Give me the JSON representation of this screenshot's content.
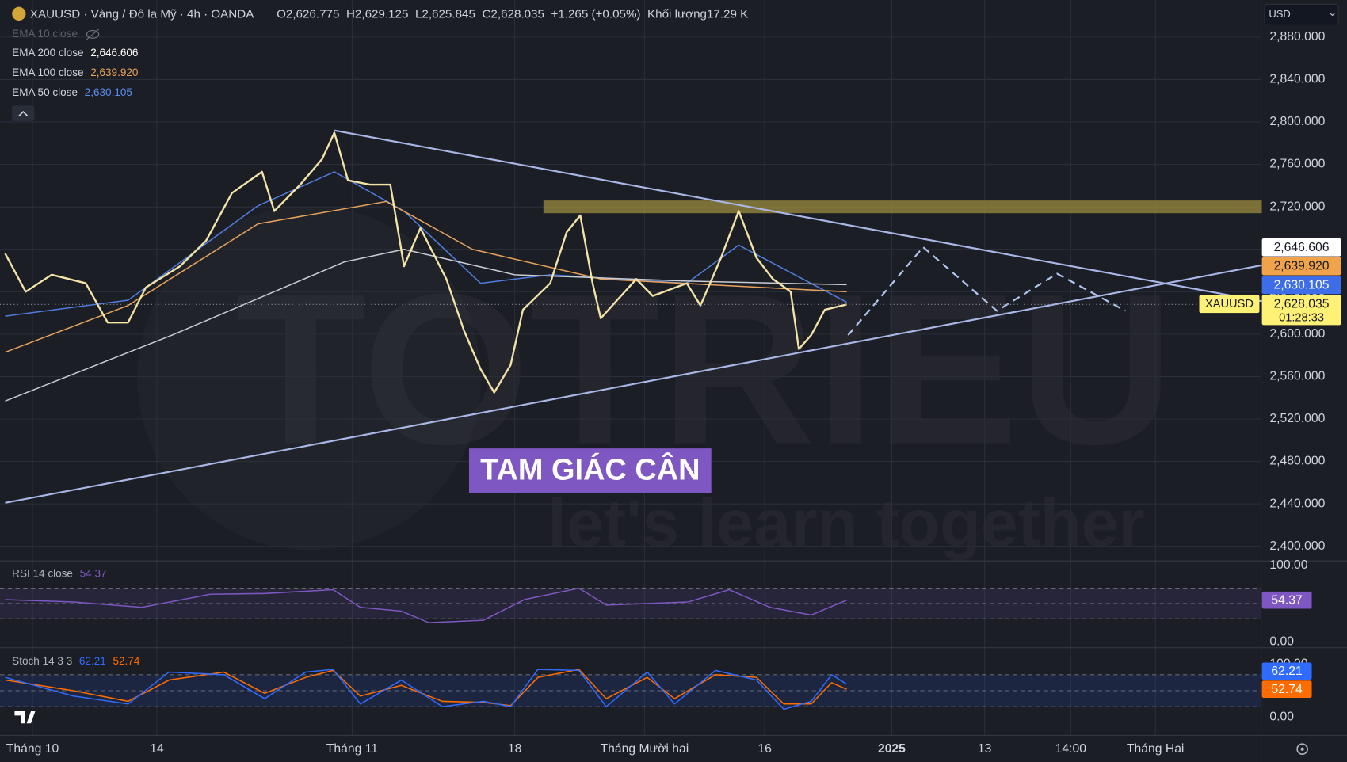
{
  "header": {
    "symbol": "XAUUSD · Vàng / Đô la Mỹ · 4h · OANDA",
    "ohlc": [
      {
        "key": "O",
        "value": "2,626.775"
      },
      {
        "key": "H",
        "value": "2,629.125"
      },
      {
        "key": "L",
        "value": "2,625.845"
      },
      {
        "key": "C",
        "value": "2,628.035"
      }
    ],
    "change": "+1.265 (+0.05%)",
    "volume_label": "Khối lượng",
    "volume": "17.29 K"
  },
  "hidden_indicator": "EMA 10 close",
  "currency": "USD",
  "pattern_label": "TAM GIÁC CÂN",
  "watermark": {
    "brand": "TOTRIEU",
    "slogan": "let's learn together"
  },
  "symbol_tag": "XAUUSD",
  "countdown": "01:28:33",
  "chart_data": [
    {
      "type": "line",
      "xlim": [
        -2,
        90
      ],
      "ylim": [
        2387,
        2915
      ],
      "yticks": [
        {
          "value": 2400,
          "label": "2,400.000"
        },
        {
          "value": 2440,
          "label": "2,440.000"
        },
        {
          "value": 2480,
          "label": "2,480.000"
        },
        {
          "value": 2520,
          "label": "2,520.000"
        },
        {
          "value": 2560,
          "label": "2,560.000"
        },
        {
          "value": 2600,
          "label": "2,600.000"
        },
        {
          "value": 2640,
          "label": "2,640.000"
        },
        {
          "value": 2680,
          "label": "2,680.000"
        },
        {
          "value": 2720,
          "label": "2,720.000"
        },
        {
          "value": 2760,
          "label": "2,760.000"
        },
        {
          "value": 2800,
          "label": "2,800.000"
        },
        {
          "value": 2840,
          "label": "2,840.000"
        },
        {
          "value": 2880,
          "label": "2,880.000"
        }
      ],
      "xticks": [
        {
          "value": 0,
          "label": "Tháng 10"
        },
        {
          "value": 9.1,
          "label": "14"
        },
        {
          "value": 23.4,
          "label": "Tháng 11"
        },
        {
          "value": 35.3,
          "label": "18"
        },
        {
          "value": 44.8,
          "label": "Tháng Mười hai"
        },
        {
          "value": 53.6,
          "label": "16"
        },
        {
          "value": 62.9,
          "label": "2025"
        },
        {
          "value": 69.7,
          "label": "13"
        },
        {
          "value": 76.0,
          "label": "14:00"
        },
        {
          "value": 82.2,
          "label": "Tháng Hai"
        }
      ],
      "grid": true,
      "series": [
        {
          "name": "XAUUSD",
          "color": "#f3e3a6",
          "x": [
            -2,
            -0.5,
            1.4,
            3.9,
            5.5,
            7.0,
            8.3,
            10.8,
            12.7,
            14.6,
            16.8,
            17.7,
            19.6,
            21.2,
            22.1,
            23.1,
            24.7,
            26.2,
            27.2,
            28.4,
            30.3,
            31.6,
            32.8,
            33.8,
            35.0,
            35.9,
            37.9,
            39.1,
            40.1,
            41.0,
            41.6,
            44.2,
            45.4,
            47.9,
            48.9,
            50.4,
            51.7,
            53.0,
            54.2,
            55.5,
            56.1,
            57.0,
            58.0,
            59.6
          ],
          "values": [
            2676,
            2640,
            2656,
            2648,
            2611,
            2611,
            2644,
            2664,
            2688,
            2733,
            2753,
            2716,
            2741,
            2765,
            2790,
            2745,
            2741,
            2741,
            2664,
            2700,
            2652,
            2603,
            2567,
            2545,
            2571,
            2623,
            2648,
            2696,
            2712,
            2648,
            2615,
            2652,
            2636,
            2648,
            2627,
            2672,
            2716,
            2672,
            2652,
            2640,
            2586,
            2599,
            2623,
            2628.035
          ]
        },
        {
          "name": "EMA 200 close",
          "color": "#c9cbd2",
          "x": [
            -2,
            10.2,
            22.8,
            27.2,
            35.3,
            47.9,
            59.6
          ],
          "values": [
            2537,
            2599,
            2668,
            2680,
            2656,
            2650,
            2646.606
          ]
        },
        {
          "name": "EMA 100 close",
          "color": "#e8a35b",
          "x": [
            -2,
            7.0,
            16.5,
            25.9,
            32.2,
            41.6,
            59.6
          ],
          "values": [
            2583,
            2627,
            2704,
            2725,
            2680,
            2652,
            2639.92
          ]
        },
        {
          "name": "EMA 50 close",
          "color": "#4f7de0",
          "x": [
            -2,
            7.0,
            16.5,
            22.1,
            27.2,
            32.8,
            37.9,
            47.9,
            51.7,
            59.6
          ],
          "values": [
            2617,
            2632,
            2721,
            2753,
            2716,
            2648,
            2656,
            2648,
            2684,
            2630.105
          ]
        }
      ],
      "trendlines": [
        {
          "color": "#a9b6e6",
          "x": [
            22.1,
            90
          ],
          "y": [
            2792,
            2631
          ]
        },
        {
          "color": "#a9b6e6",
          "x": [
            -2,
            90
          ],
          "y": [
            2441,
            2665
          ]
        }
      ],
      "zone": {
        "color": "#8c7f3c",
        "x": [
          37.4,
          90
        ],
        "y": [
          2714,
          2726
        ]
      },
      "projection": {
        "color": "#b3c6f0",
        "x": [
          59.7,
          65.2,
          70.6,
          75.0,
          80.0
        ],
        "y": [
          2599,
          2682,
          2622,
          2657,
          2622
        ]
      },
      "price_tags": [
        {
          "value": 2646.606,
          "label": "2,646.606",
          "color": "#ffffff",
          "text_color": "#131722"
        },
        {
          "value": 2639.92,
          "label": "2,639.920",
          "color": "#f0a34a",
          "text_color": "#131722"
        },
        {
          "value": 2630.105,
          "label": "2,630.105",
          "color": "#3d6ee8",
          "text_color": "#ffffff"
        },
        {
          "value": 2628.035,
          "label": "2,628.035",
          "color": "#fff176",
          "text_color": "#131722"
        }
      ]
    },
    {
      "type": "line",
      "title": "RSI 14 close",
      "xlim": [
        -2,
        90
      ],
      "ylim": [
        0,
        100
      ],
      "yticks": [
        {
          "value": 100,
          "label": "100.00"
        },
        {
          "value": 0,
          "label": "0.00"
        }
      ],
      "bands": [
        70,
        50,
        30
      ],
      "band_color": "#7e57c2",
      "series": [
        {
          "color": "#7e57c2",
          "last_value_label": "54.37",
          "x": [
            -2,
            3,
            8,
            13,
            17,
            22,
            24,
            27,
            29,
            33,
            36,
            40,
            42,
            48,
            51,
            54,
            57,
            59.6
          ],
          "values": [
            55,
            52,
            45,
            62,
            63,
            68,
            45,
            40,
            25,
            28,
            55,
            70,
            48,
            52,
            68,
            45,
            35,
            54.37
          ]
        }
      ]
    },
    {
      "type": "line",
      "title": "Stoch 14 3 3",
      "xlim": [
        -2,
        90
      ],
      "ylim": [
        0,
        100
      ],
      "yticks": [
        {
          "value": 100,
          "label": "100.00"
        },
        {
          "value": 0,
          "label": "0.00"
        }
      ],
      "bands": [
        80,
        50,
        20
      ],
      "band_color": "#2962ff",
      "series": [
        {
          "color": "#2f6bff",
          "last_value_label": "62.21",
          "x": [
            -2,
            3,
            7,
            10,
            14,
            17,
            20,
            22,
            24,
            27,
            30,
            33,
            35,
            37,
            40,
            42,
            45,
            47,
            50,
            53,
            55,
            57,
            58.5,
            59.6
          ],
          "values": [
            75,
            40,
            25,
            85,
            80,
            35,
            85,
            90,
            25,
            70,
            20,
            30,
            20,
            90,
            88,
            20,
            85,
            25,
            88,
            70,
            15,
            30,
            80,
            62.21
          ]
        },
        {
          "color": "#ff6d00",
          "last_value_label": "52.74",
          "x": [
            -2,
            3,
            7,
            10,
            14,
            17,
            20,
            22,
            24,
            27,
            30,
            33,
            35,
            37,
            40,
            42,
            45,
            47,
            50,
            53,
            55,
            57,
            58.5,
            59.6
          ],
          "values": [
            70,
            50,
            30,
            70,
            85,
            45,
            75,
            88,
            40,
            60,
            30,
            28,
            22,
            75,
            90,
            35,
            75,
            35,
            80,
            75,
            25,
            25,
            65,
            52.74
          ]
        }
      ]
    }
  ]
}
